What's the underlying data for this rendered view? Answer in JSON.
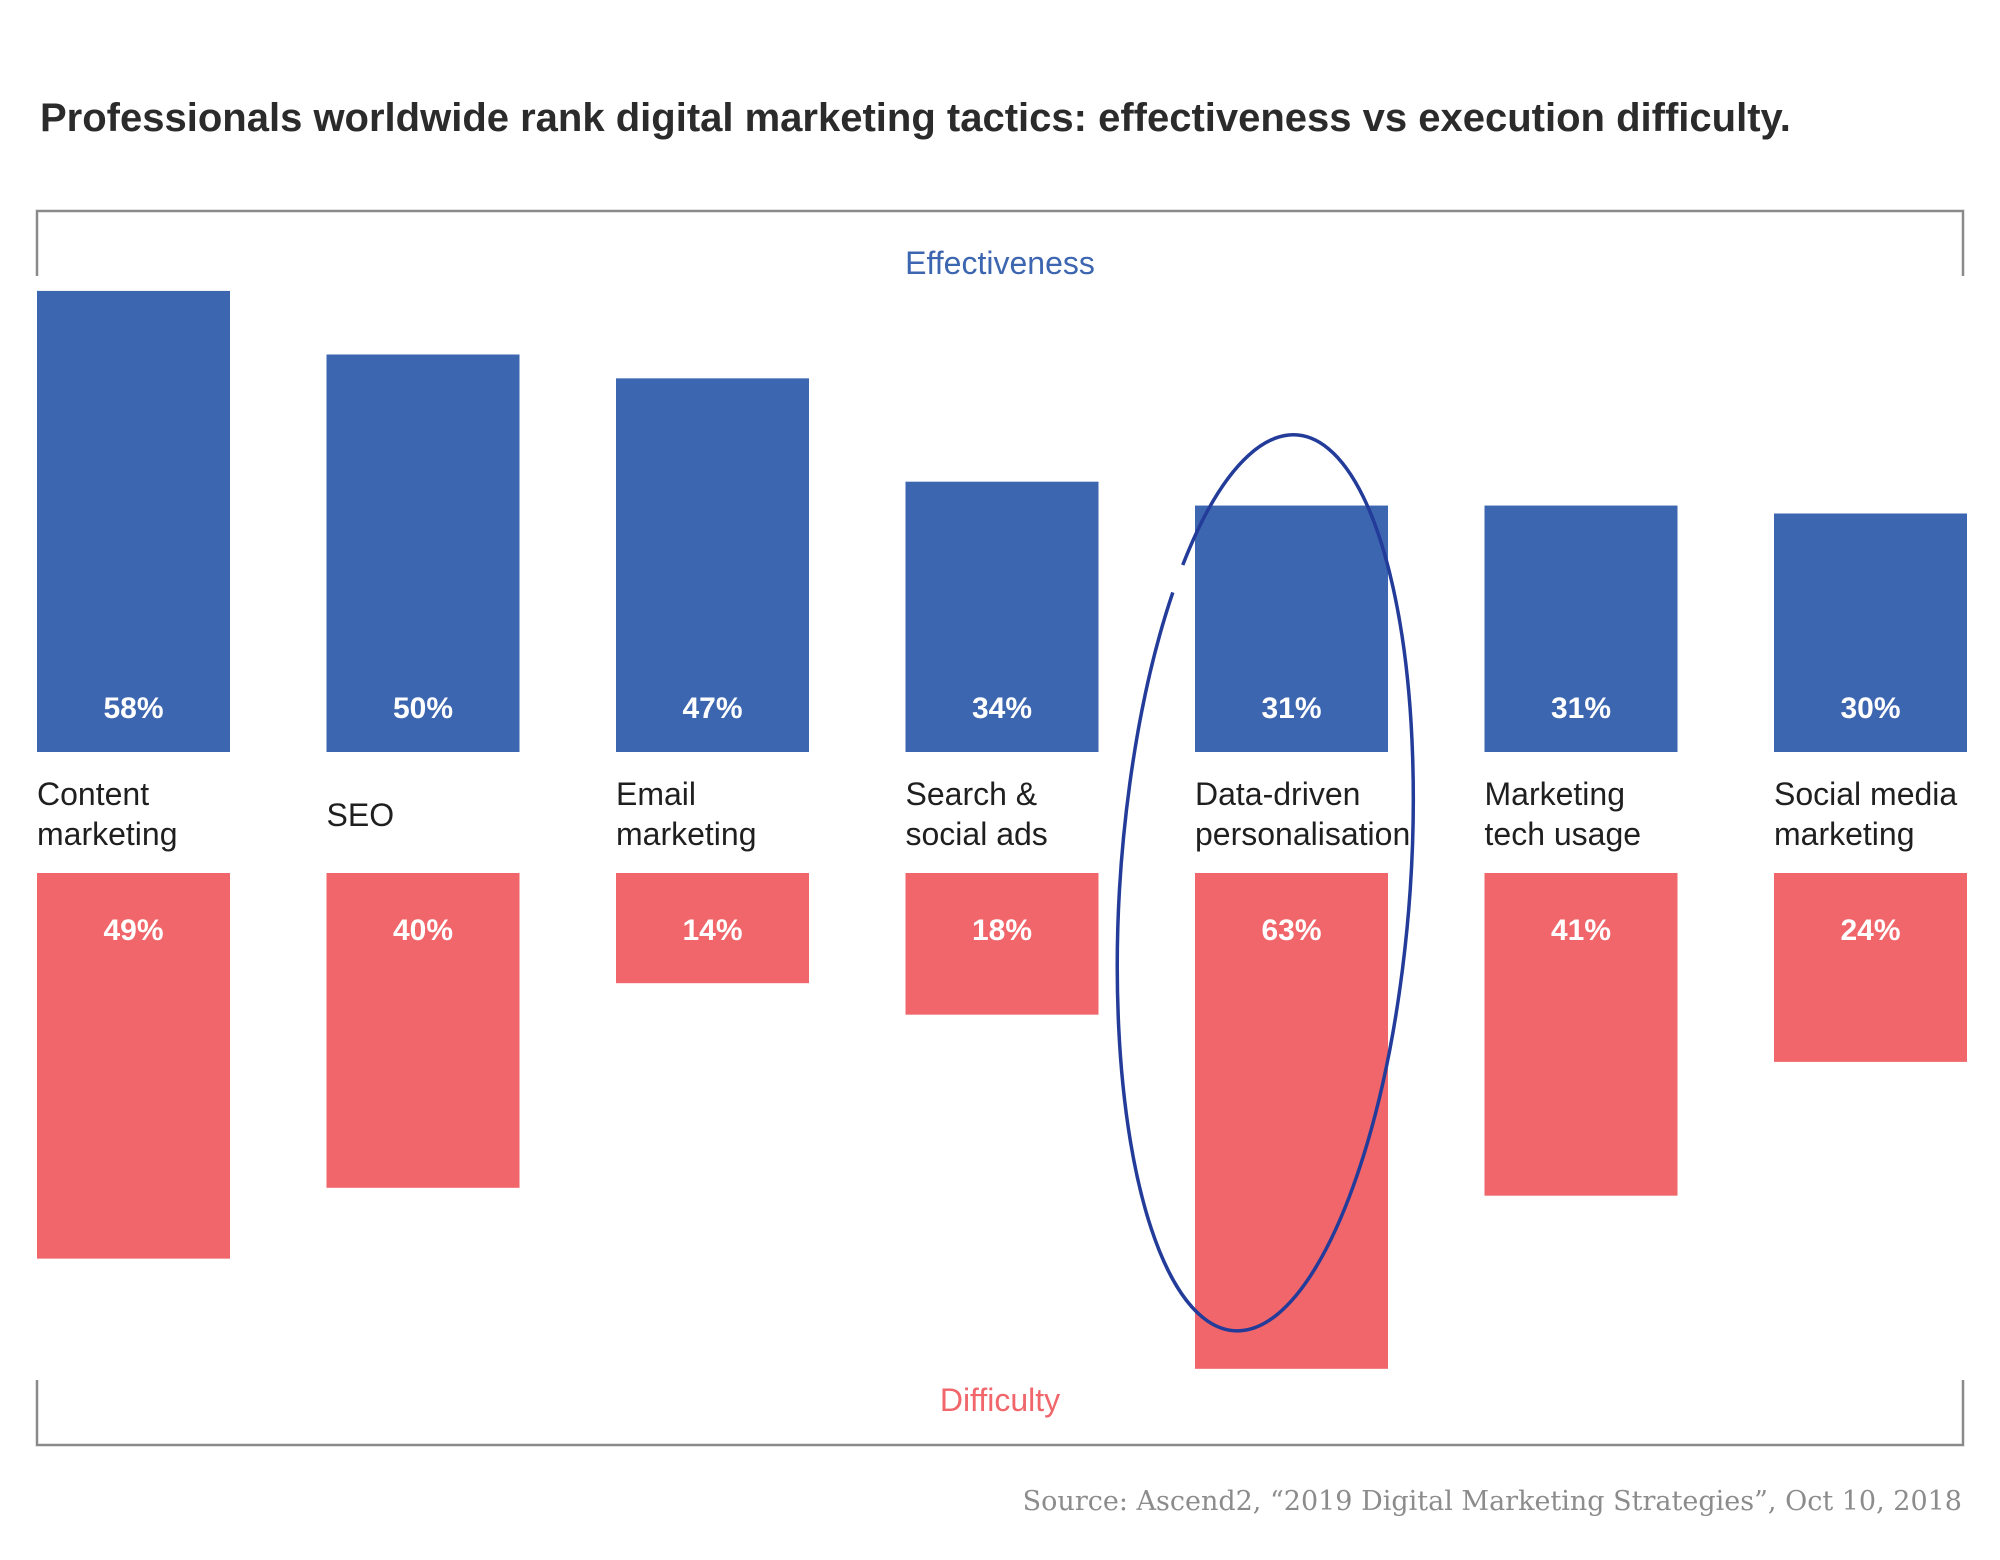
{
  "chart_data": {
    "type": "bar",
    "title": "Professionals worldwide rank digital marketing tactics: effectiveness vs execution difficulty.",
    "categories": [
      [
        "Content",
        "marketing"
      ],
      [
        "SEO"
      ],
      [
        "Email",
        "marketing"
      ],
      [
        "Search &",
        "social ads"
      ],
      [
        "Data-driven",
        "personalisation"
      ],
      [
        "Marketing",
        "tech usage"
      ],
      [
        "Social media",
        "marketing"
      ]
    ],
    "series": [
      {
        "name": "Effectiveness",
        "values": [
          58,
          50,
          47,
          34,
          31,
          31,
          30
        ],
        "labels": [
          "58%",
          "50%",
          "47%",
          "34%",
          "31%",
          "31%",
          "30%"
        ],
        "direction": "up"
      },
      {
        "name": "Difficulty",
        "values": [
          49,
          40,
          14,
          18,
          63,
          41,
          24
        ],
        "labels": [
          "49%",
          "40%",
          "14%",
          "18%",
          "63%",
          "41%",
          "24%"
        ],
        "direction": "down"
      }
    ],
    "unit": "%",
    "highlighted_category": "Data-driven personalisation",
    "source": "Source: Ascend2, “2019 Digital Marketing Strategies”, Oct 10, 2018"
  },
  "colors": {
    "effectiveness": "#3d66b0",
    "difficulty": "#f0666a",
    "title": "#2b2b2b",
    "category_text": "#1f1f1f",
    "frame": "#8a8a8a",
    "highlight_ellipse": "#233c9a",
    "source_text": "#8c8c8c"
  }
}
